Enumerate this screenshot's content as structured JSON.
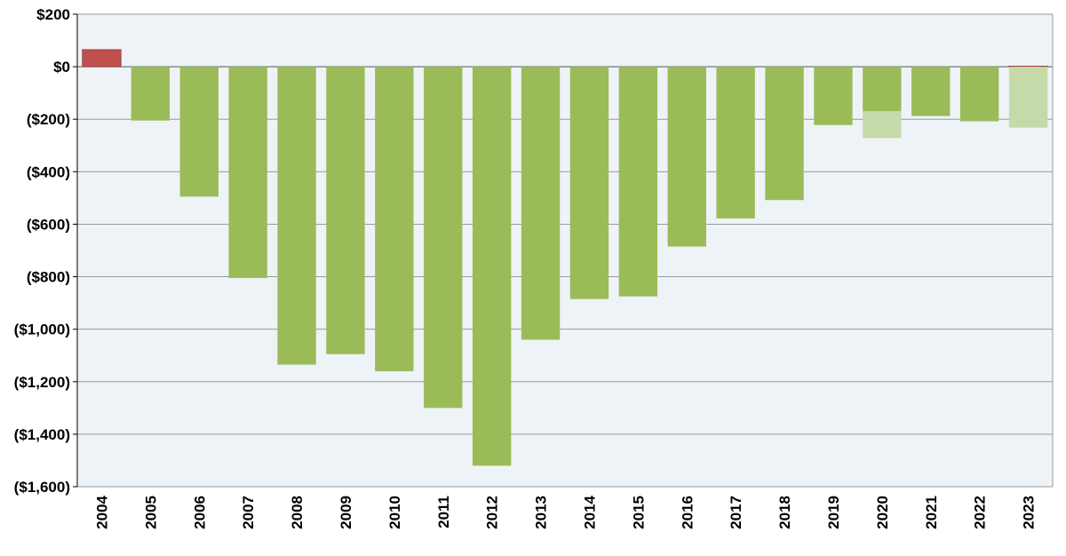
{
  "chart_data": {
    "type": "bar",
    "title": "",
    "xlabel": "",
    "ylabel": "",
    "ylim": [
      -1600,
      200
    ],
    "yticks": [
      200,
      0,
      -200,
      -400,
      -600,
      -800,
      -1000,
      -1200,
      -1400,
      -1600
    ],
    "ytick_labels": [
      "$200",
      "$0",
      "($200)",
      "($400)",
      "($600)",
      "($800)",
      "($1,000)",
      "($1,200)",
      "($1,400)",
      "($1,600)"
    ],
    "grid": "horizontal",
    "legend": "none",
    "categories": [
      "2004",
      "2005",
      "2006",
      "2007",
      "2008",
      "2009",
      "2010",
      "2011",
      "2012",
      "2013",
      "2014",
      "2015",
      "2016",
      "2017",
      "2018",
      "2019",
      "2020",
      "2021",
      "2022",
      "2023"
    ],
    "values": [
      65,
      -205,
      -495,
      -805,
      -1135,
      -1095,
      -1160,
      -1300,
      -1520,
      -1040,
      -885,
      -875,
      -685,
      -578,
      -508,
      -222,
      -170,
      -188,
      -208,
      2
    ],
    "extension_values": [
      null,
      null,
      null,
      null,
      null,
      null,
      null,
      null,
      null,
      null,
      null,
      null,
      null,
      null,
      null,
      null,
      -272,
      null,
      null,
      -232
    ],
    "colors": {
      "positive": "#c0504d",
      "negative": "#9bbb59",
      "extension": "#c6d9a9",
      "plot_background": "#eef3f8",
      "gridline": "#9a9a9a",
      "axis": "#000000"
    }
  }
}
